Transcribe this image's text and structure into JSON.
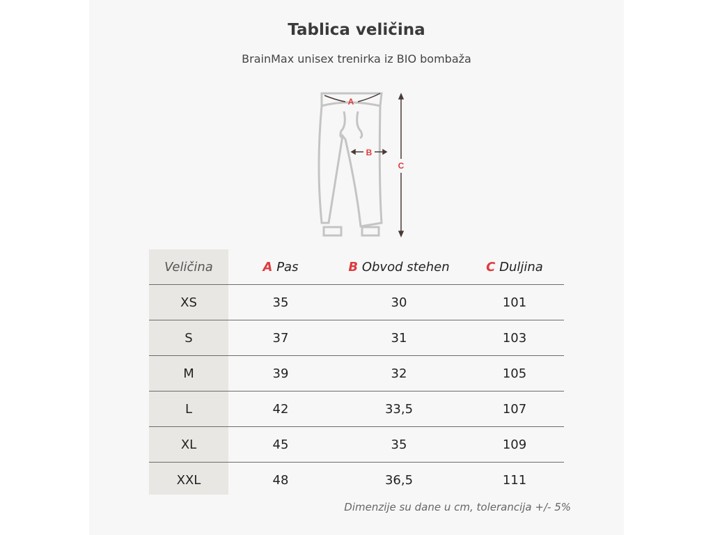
{
  "title": "Tablica veličina",
  "subtitle": "BrainMax unisex trenirka iz BIO bombaža",
  "diagram": {
    "labels": [
      "A",
      "B",
      "C"
    ],
    "accent": "#e03a3e",
    "icon": "sweatpants-outline"
  },
  "table": {
    "headers": [
      {
        "letter": "",
        "label": "Veličina"
      },
      {
        "letter": "A",
        "label": "Pas"
      },
      {
        "letter": "B",
        "label": "Obvod stehen"
      },
      {
        "letter": "C",
        "label": "Duljina"
      }
    ],
    "rows": [
      [
        "XS",
        "35",
        "30",
        "101"
      ],
      [
        "S",
        "37",
        "31",
        "103"
      ],
      [
        "M",
        "39",
        "32",
        "105"
      ],
      [
        "L",
        "42",
        "33,5",
        "107"
      ],
      [
        "XL",
        "45",
        "35",
        "109"
      ],
      [
        "XXL",
        "48",
        "36,5",
        "111"
      ]
    ]
  },
  "note": "Dimenzije su dane u cm, tolerancija +/- 5%"
}
